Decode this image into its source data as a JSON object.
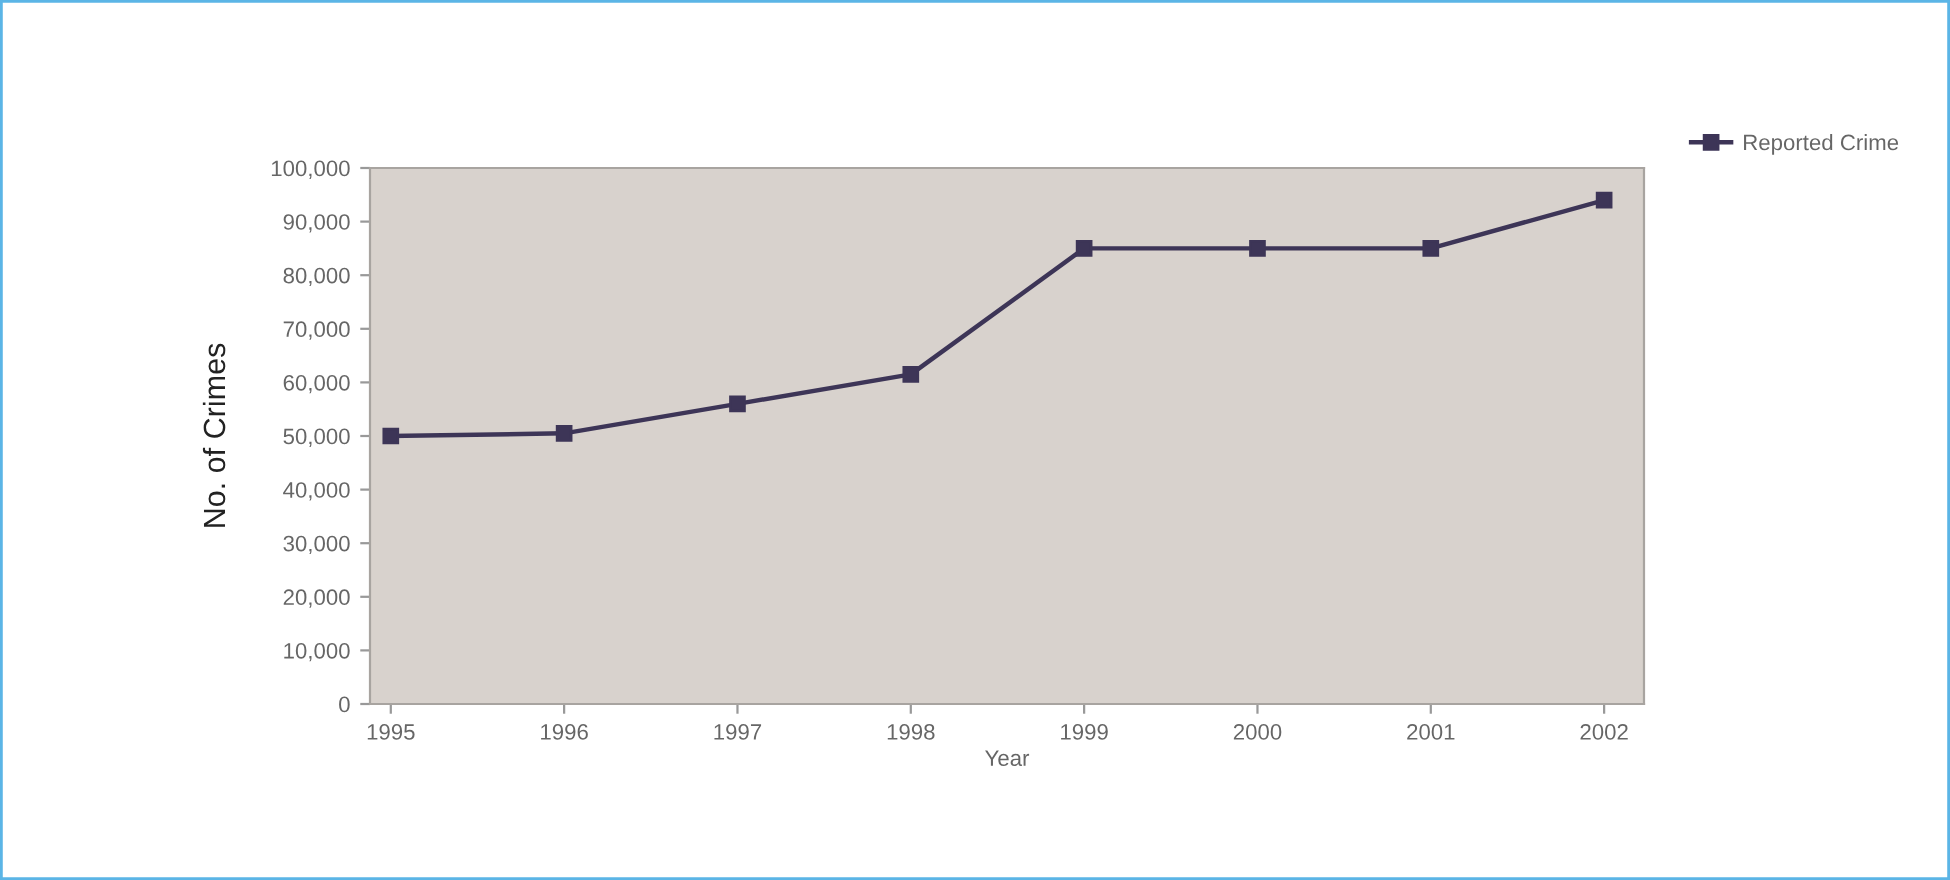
{
  "chart_data": {
    "type": "line",
    "xlabel": "Year",
    "ylabel": "No. of Crimes",
    "categories": [
      "1995",
      "1996",
      "1997",
      "1998",
      "1999",
      "2000",
      "2001",
      "2002"
    ],
    "series": [
      {
        "name": "Reported Crime",
        "color": "#3d3557",
        "values": [
          50000,
          50500,
          56000,
          61500,
          85000,
          85000,
          85000,
          94000
        ]
      }
    ],
    "ylim": [
      0,
      100000
    ],
    "yticks": [
      0,
      {
        "value": 10000,
        "label": "10,000"
      },
      {
        "value": 20000,
        "label": "20,000"
      },
      {
        "value": 30000,
        "label": "30,000"
      },
      {
        "value": 40000,
        "label": "40,000"
      },
      {
        "value": 50000,
        "label": "50,000"
      },
      {
        "value": 60000,
        "label": "60,000"
      },
      {
        "value": 70000,
        "label": "70,000"
      },
      {
        "value": 80000,
        "label": "80,000"
      },
      {
        "value": 90000,
        "label": "90,000"
      },
      {
        "value": 100000,
        "label": "100,000"
      }
    ],
    "legend": "top right",
    "marker": "square",
    "line_style": "solid"
  }
}
